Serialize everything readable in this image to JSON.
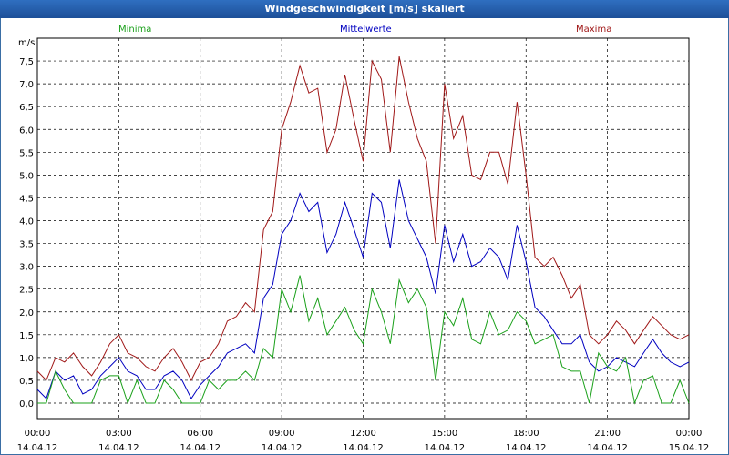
{
  "window": {
    "title": "Windgeschwindigkeit [m/s] skaliert"
  },
  "colors": {
    "minima": "#1aa01a",
    "mittelwerte": "#0000c0",
    "maxima": "#a01818",
    "grid": "#000000"
  },
  "chart_data": {
    "type": "line",
    "title": "Windgeschwindigkeit [m/s] skaliert",
    "ylabel": "m/s",
    "ylim": [
      0,
      8
    ],
    "y_ticks": [
      "0,0",
      "0,5",
      "1,0",
      "1,5",
      "2,0",
      "2,5",
      "3,0",
      "3,5",
      "4,0",
      "4,5",
      "5,0",
      "5,5",
      "6,0",
      "6,5",
      "7,0",
      "7,5"
    ],
    "x_ticks": [
      {
        "time": "00:00",
        "date": "14.04.12"
      },
      {
        "time": "03:00",
        "date": "14.04.12"
      },
      {
        "time": "06:00",
        "date": "14.04.12"
      },
      {
        "time": "09:00",
        "date": "14.04.12"
      },
      {
        "time": "12:00",
        "date": "14.04.12"
      },
      {
        "time": "15:00",
        "date": "14.04.12"
      },
      {
        "time": "18:00",
        "date": "14.04.12"
      },
      {
        "time": "21:00",
        "date": "14.04.12"
      },
      {
        "time": "00:00",
        "date": "15.04.12"
      }
    ],
    "x_hours_range": [
      0,
      24
    ],
    "grid": true,
    "series": [
      {
        "name": "Maxima",
        "color": "#a01818",
        "x": [
          0,
          0.33,
          0.67,
          1,
          1.33,
          1.67,
          2,
          2.33,
          2.67,
          3,
          3.33,
          3.67,
          4,
          4.33,
          4.67,
          5,
          5.33,
          5.67,
          6,
          6.33,
          6.67,
          7,
          7.33,
          7.67,
          8,
          8.33,
          8.67,
          9,
          9.33,
          9.67,
          10,
          10.33,
          10.67,
          11,
          11.33,
          11.67,
          12,
          12.33,
          12.67,
          13,
          13.33,
          13.67,
          14,
          14.33,
          14.67,
          15,
          15.33,
          15.67,
          16,
          16.33,
          16.67,
          17,
          17.33,
          17.67,
          18,
          18.33,
          18.67,
          19,
          19.33,
          19.67,
          20,
          20.33,
          20.67,
          21,
          21.33,
          21.67,
          22,
          22.33,
          22.67,
          23,
          23.33,
          23.67,
          24
        ],
        "values": [
          0.7,
          0.5,
          1.0,
          0.9,
          1.1,
          0.8,
          0.6,
          0.9,
          1.3,
          1.5,
          1.1,
          1.0,
          0.8,
          0.7,
          1.0,
          1.2,
          0.9,
          0.5,
          0.9,
          1.0,
          1.3,
          1.8,
          1.9,
          2.2,
          2.0,
          3.8,
          4.2,
          6.0,
          6.6,
          7.4,
          6.8,
          6.9,
          5.5,
          6.0,
          7.2,
          6.2,
          5.3,
          7.5,
          7.1,
          5.5,
          7.6,
          6.6,
          5.8,
          5.3,
          3.5,
          7.0,
          5.8,
          6.3,
          5.0,
          4.9,
          5.5,
          5.5,
          4.8,
          6.6,
          5.0,
          3.2,
          3.0,
          3.2,
          2.8,
          2.3,
          2.6,
          1.5,
          1.3,
          1.5,
          1.8,
          1.6,
          1.3,
          1.6,
          1.9,
          1.7,
          1.5,
          1.4,
          1.5
        ]
      },
      {
        "name": "Mittelwerte",
        "color": "#0000c0",
        "x": [
          0,
          0.33,
          0.67,
          1,
          1.33,
          1.67,
          2,
          2.33,
          2.67,
          3,
          3.33,
          3.67,
          4,
          4.33,
          4.67,
          5,
          5.33,
          5.67,
          6,
          6.33,
          6.67,
          7,
          7.33,
          7.67,
          8,
          8.33,
          8.67,
          9,
          9.33,
          9.67,
          10,
          10.33,
          10.67,
          11,
          11.33,
          11.67,
          12,
          12.33,
          12.67,
          13,
          13.33,
          13.67,
          14,
          14.33,
          14.67,
          15,
          15.33,
          15.67,
          16,
          16.33,
          16.67,
          17,
          17.33,
          17.67,
          18,
          18.33,
          18.67,
          19,
          19.33,
          19.67,
          20,
          20.33,
          20.67,
          21,
          21.33,
          21.67,
          22,
          22.33,
          22.67,
          23,
          23.33,
          23.67,
          24
        ],
        "values": [
          0.3,
          0.1,
          0.7,
          0.5,
          0.6,
          0.2,
          0.3,
          0.6,
          0.8,
          1.0,
          0.7,
          0.6,
          0.3,
          0.3,
          0.6,
          0.7,
          0.5,
          0.1,
          0.4,
          0.6,
          0.8,
          1.1,
          1.2,
          1.3,
          1.1,
          2.3,
          2.6,
          3.7,
          4.0,
          4.6,
          4.2,
          4.4,
          3.3,
          3.7,
          4.4,
          3.8,
          3.2,
          4.6,
          4.4,
          3.4,
          4.9,
          4.0,
          3.6,
          3.2,
          2.4,
          3.9,
          3.1,
          3.7,
          3.0,
          3.1,
          3.4,
          3.2,
          2.7,
          3.9,
          3.1,
          2.1,
          1.9,
          1.6,
          1.3,
          1.3,
          1.5,
          0.9,
          0.7,
          0.8,
          1.0,
          0.9,
          0.8,
          1.1,
          1.4,
          1.1,
          0.9,
          0.8,
          0.9
        ]
      },
      {
        "name": "Minima",
        "color": "#1aa01a",
        "x": [
          0,
          0.33,
          0.67,
          1,
          1.33,
          1.67,
          2,
          2.33,
          2.67,
          3,
          3.33,
          3.67,
          4,
          4.33,
          4.67,
          5,
          5.33,
          5.67,
          6,
          6.33,
          6.67,
          7,
          7.33,
          7.67,
          8,
          8.33,
          8.67,
          9,
          9.33,
          9.67,
          10,
          10.33,
          10.67,
          11,
          11.33,
          11.67,
          12,
          12.33,
          12.67,
          13,
          13.33,
          13.67,
          14,
          14.33,
          14.67,
          15,
          15.33,
          15.67,
          16,
          16.33,
          16.67,
          17,
          17.33,
          17.67,
          18,
          18.33,
          18.67,
          19,
          19.33,
          19.67,
          20,
          20.33,
          20.67,
          21,
          21.33,
          21.67,
          22,
          22.33,
          22.67,
          23,
          23.33,
          23.67,
          24
        ],
        "values": [
          0.0,
          0.0,
          0.7,
          0.3,
          0.0,
          0.0,
          0.0,
          0.5,
          0.6,
          0.6,
          0.0,
          0.5,
          0.0,
          0.0,
          0.5,
          0.3,
          0.0,
          0.0,
          0.0,
          0.5,
          0.3,
          0.5,
          0.5,
          0.7,
          0.5,
          1.2,
          1.0,
          2.5,
          2.0,
          2.8,
          1.8,
          2.3,
          1.5,
          1.8,
          2.1,
          1.6,
          1.3,
          2.5,
          2.0,
          1.3,
          2.7,
          2.2,
          2.5,
          2.1,
          0.5,
          2.0,
          1.7,
          2.3,
          1.4,
          1.3,
          2.0,
          1.5,
          1.6,
          2.0,
          1.8,
          1.3,
          1.4,
          1.5,
          0.8,
          0.7,
          0.7,
          0.0,
          1.1,
          0.8,
          0.7,
          1.0,
          0.0,
          0.5,
          0.6,
          0.0,
          0.0,
          0.5,
          0.0
        ]
      }
    ]
  }
}
